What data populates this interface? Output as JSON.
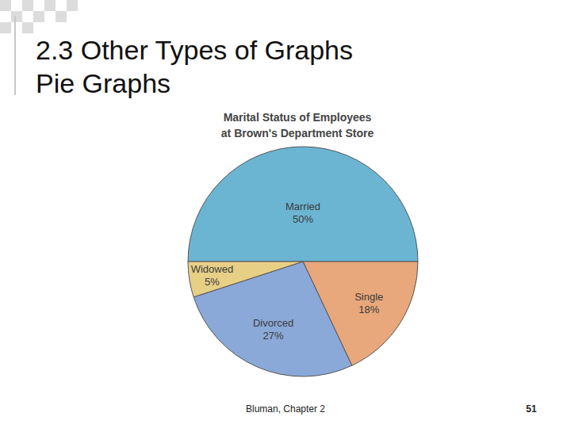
{
  "slide": {
    "title": [
      "2.3 Other Types of Graphs",
      "Pie Graphs"
    ],
    "footer": "Bluman, Chapter 2",
    "page": 51
  },
  "chart_data": {
    "type": "pie",
    "title": [
      "Marital Status of Employees",
      "at Brown's Department Store"
    ],
    "categories": [
      "Married",
      "Single",
      "Divorced",
      "Widowed"
    ],
    "values": [
      50,
      18,
      27,
      5
    ],
    "value_labels": [
      "50%",
      "18%",
      "27%",
      "5%"
    ],
    "data_labels": true,
    "colors": [
      "#6bb5d3",
      "#e8a87c",
      "#8aa9d8",
      "#e8cf86"
    ]
  }
}
